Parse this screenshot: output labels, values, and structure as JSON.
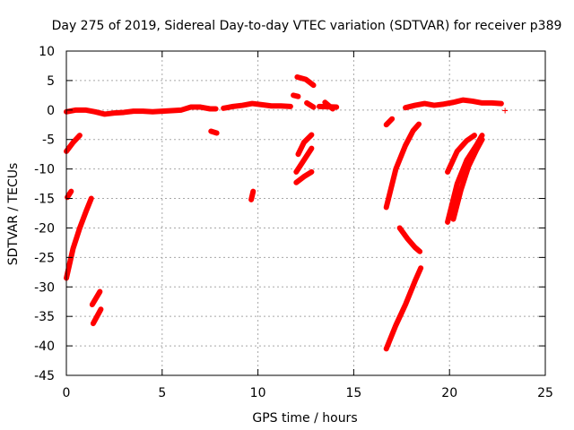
{
  "chart_data": {
    "type": "scatter",
    "title": "Day 275 of 2019, Sidereal Day-to-day VTEC variation (SDTVAR) for receiver p389",
    "xlabel": "GPS time / hours",
    "ylabel": "SDTVAR / TECUs",
    "xlim": [
      0,
      25
    ],
    "ylim": [
      -45,
      10
    ],
    "xticks": [
      0,
      5,
      10,
      15,
      20,
      25
    ],
    "yticks": [
      10,
      5,
      0,
      -5,
      -10,
      -15,
      -20,
      -25,
      -30,
      -35,
      -40,
      -45
    ],
    "grid": true,
    "marker": "+",
    "color": "#ff0000",
    "series": [
      {
        "name": "baseline-near-zero",
        "type": "polyline",
        "x": [
          0.0,
          0.5,
          1.0,
          1.5,
          2.0,
          2.5,
          3.0,
          3.5,
          4.0,
          4.5,
          5.0,
          5.5,
          6.0,
          6.5,
          7.0,
          7.5,
          7.8
        ],
        "y": [
          -0.3,
          0.0,
          0.0,
          -0.3,
          -0.7,
          -0.5,
          -0.4,
          -0.2,
          -0.2,
          -0.3,
          -0.2,
          -0.1,
          0.0,
          0.5,
          0.5,
          0.2,
          0.2
        ]
      },
      {
        "name": "baseline-mid",
        "type": "polyline",
        "x": [
          8.2,
          8.7,
          9.2,
          9.7,
          10.2,
          10.7,
          11.2,
          11.7
        ],
        "y": [
          0.3,
          0.6,
          0.8,
          1.1,
          0.9,
          0.7,
          0.7,
          0.6
        ]
      },
      {
        "name": "baseline-late",
        "type": "polyline",
        "x": [
          17.7,
          18.2,
          18.7,
          19.2,
          19.7,
          20.2,
          20.7,
          21.2,
          21.7,
          22.2,
          22.7
        ],
        "y": [
          0.4,
          0.8,
          1.1,
          0.8,
          1.0,
          1.3,
          1.7,
          1.5,
          1.2,
          1.2,
          1.1
        ]
      },
      {
        "name": "seg-a",
        "type": "polyline",
        "x": [
          0.0,
          0.35,
          0.7
        ],
        "y": [
          -7.0,
          -5.5,
          -4.3
        ]
      },
      {
        "name": "seg-b",
        "type": "polyline",
        "x": [
          0.05,
          0.25
        ],
        "y": [
          -14.8,
          -13.8
        ]
      },
      {
        "name": "seg-c",
        "type": "polyline",
        "x": [
          0.0,
          0.35,
          0.7,
          1.05,
          1.3
        ],
        "y": [
          -28.5,
          -23.5,
          -20.0,
          -17.0,
          -15.0
        ]
      },
      {
        "name": "seg-d",
        "type": "polyline",
        "x": [
          1.35,
          1.75
        ],
        "y": [
          -33.0,
          -30.8
        ]
      },
      {
        "name": "seg-e",
        "type": "polyline",
        "x": [
          1.4,
          1.8
        ],
        "y": [
          -36.2,
          -33.8
        ]
      },
      {
        "name": "seg-f",
        "type": "polyline",
        "x": [
          7.55,
          7.85
        ],
        "y": [
          -3.6,
          -3.9
        ]
      },
      {
        "name": "seg-g",
        "type": "polyline",
        "x": [
          9.65,
          9.75
        ],
        "y": [
          -15.2,
          -13.8
        ]
      },
      {
        "name": "seg-h",
        "type": "polyline",
        "x": [
          11.85,
          12.1
        ],
        "y": [
          2.5,
          2.3
        ]
      },
      {
        "name": "seg-i",
        "type": "polyline",
        "x": [
          12.05,
          12.5,
          12.9
        ],
        "y": [
          5.6,
          5.2,
          4.2
        ]
      },
      {
        "name": "seg-j",
        "type": "polyline",
        "x": [
          12.55,
          12.9
        ],
        "y": [
          1.2,
          0.5
        ]
      },
      {
        "name": "seg-k",
        "type": "polyline",
        "x": [
          13.5,
          13.9
        ],
        "y": [
          1.3,
          0.2
        ]
      },
      {
        "name": "seg-l",
        "type": "polyline",
        "x": [
          13.2,
          14.1
        ],
        "y": [
          0.6,
          0.5
        ]
      },
      {
        "name": "seg-m",
        "type": "polyline",
        "x": [
          12.1,
          12.4,
          12.8
        ],
        "y": [
          -7.5,
          -5.5,
          -4.2
        ]
      },
      {
        "name": "seg-n",
        "type": "polyline",
        "x": [
          12.0,
          12.4,
          12.8
        ],
        "y": [
          -10.5,
          -8.5,
          -6.5
        ]
      },
      {
        "name": "seg-o",
        "type": "polyline",
        "x": [
          12.0,
          12.4,
          12.8
        ],
        "y": [
          -12.3,
          -11.3,
          -10.5
        ]
      },
      {
        "name": "seg-p",
        "type": "polyline",
        "x": [
          16.7,
          17.0
        ],
        "y": [
          -2.5,
          -1.5
        ]
      },
      {
        "name": "seg-q",
        "type": "polyline",
        "x": [
          16.7,
          17.2,
          17.7,
          18.1,
          18.4
        ],
        "y": [
          -16.5,
          -10.0,
          -6.0,
          -3.5,
          -2.4
        ]
      },
      {
        "name": "seg-r",
        "type": "polyline",
        "x": [
          17.4,
          17.8,
          18.2,
          18.45
        ],
        "y": [
          -20.0,
          -21.8,
          -23.3,
          -24.0
        ]
      },
      {
        "name": "seg-s",
        "type": "polyline",
        "x": [
          16.7,
          17.2,
          17.7,
          18.2,
          18.5
        ],
        "y": [
          -40.5,
          -36.5,
          -33.0,
          -29.0,
          -26.8
        ]
      },
      {
        "name": "seg-t",
        "type": "polyline",
        "x": [
          19.9,
          20.4,
          20.9,
          21.3
        ],
        "y": [
          -10.5,
          -7.0,
          -5.2,
          -4.3
        ]
      },
      {
        "name": "seg-u",
        "type": "polyline",
        "x": [
          19.9,
          20.4,
          20.9,
          21.4,
          21.7
        ],
        "y": [
          -19.0,
          -12.5,
          -8.5,
          -6.0,
          -4.3
        ]
      },
      {
        "name": "seg-v",
        "type": "polyline",
        "x": [
          20.2,
          20.6,
          21.0,
          21.4,
          21.7
        ],
        "y": [
          -18.5,
          -13.5,
          -9.5,
          -6.8,
          -5.0
        ]
      },
      {
        "name": "point-a",
        "type": "point",
        "x": [
          22.9
        ],
        "y": [
          -0.1
        ]
      }
    ]
  }
}
